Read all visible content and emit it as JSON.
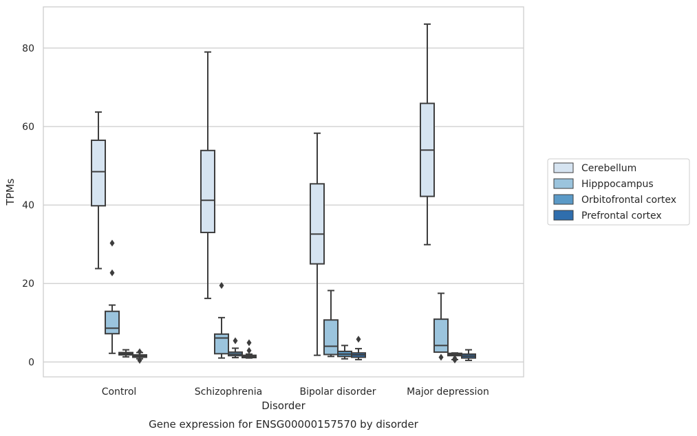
{
  "chart_data": {
    "type": "box",
    "title": "Gene expression for ENSG00000157570 by disorder",
    "xlabel": "Disorder",
    "ylabel": "TPMs",
    "ylim": [
      -3.8,
      90.5
    ],
    "yticks": [
      0,
      20,
      40,
      60,
      80
    ],
    "grid": true,
    "legend_position": "right",
    "categories": [
      "Control",
      "Schizophrenia",
      "Bipolar disorder",
      "Major depression"
    ],
    "series": [
      {
        "name": "Cerebellum",
        "color": "#d6e4f1",
        "boxes": [
          {
            "whisker_low": 23.8,
            "q1": 39.8,
            "median": 48.5,
            "q3": 56.5,
            "whisker_high": 63.7,
            "outliers": []
          },
          {
            "whisker_low": 16.2,
            "q1": 33.0,
            "median": 41.2,
            "q3": 53.9,
            "whisker_high": 79.0,
            "outliers": []
          },
          {
            "whisker_low": 1.7,
            "q1": 25.0,
            "median": 32.6,
            "q3": 45.4,
            "whisker_high": 58.3,
            "outliers": []
          },
          {
            "whisker_low": 29.9,
            "q1": 42.2,
            "median": 54.0,
            "q3": 65.9,
            "whisker_high": 86.1,
            "outliers": []
          }
        ]
      },
      {
        "name": "Hipppocampus",
        "color": "#9bc4dd",
        "boxes": [
          {
            "whisker_low": 2.2,
            "q1": 7.2,
            "median": 8.6,
            "q3": 12.9,
            "whisker_high": 14.5,
            "outliers": [
              22.7,
              30.3
            ]
          },
          {
            "whisker_low": 1.0,
            "q1": 2.1,
            "median": 6.1,
            "q3": 7.1,
            "whisker_high": 11.3,
            "outliers": [
              19.5
            ]
          },
          {
            "whisker_low": 1.4,
            "q1": 1.9,
            "median": 4.0,
            "q3": 10.7,
            "whisker_high": 18.2,
            "outliers": []
          },
          {
            "whisker_low": 2.5,
            "q1": 2.5,
            "median": 4.2,
            "q3": 10.9,
            "whisker_high": 17.5,
            "outliers": [
              1.2
            ]
          }
        ]
      },
      {
        "name": "Orbitofrontal cortex",
        "color": "#5b9ac7",
        "boxes": [
          {
            "whisker_low": 1.3,
            "q1": 1.8,
            "median": 2.1,
            "q3": 2.4,
            "whisker_high": 3.1,
            "outliers": []
          },
          {
            "whisker_low": 1.1,
            "q1": 1.6,
            "median": 2.0,
            "q3": 2.5,
            "whisker_high": 3.5,
            "outliers": [
              5.4
            ]
          },
          {
            "whisker_low": 0.8,
            "q1": 1.4,
            "median": 2.0,
            "q3": 2.7,
            "whisker_high": 4.2,
            "outliers": []
          },
          {
            "whisker_low": 0.6,
            "q1": 1.6,
            "median": 1.9,
            "q3": 2.2,
            "whisker_high": 2.3,
            "outliers": [
              0.5,
              0.9
            ]
          }
        ]
      },
      {
        "name": "Prefrontal cortex",
        "color": "#2f6ead",
        "boxes": [
          {
            "whisker_low": 0.8,
            "q1": 1.2,
            "median": 1.5,
            "q3": 1.8,
            "whisker_high": 2.4,
            "outliers": [
              0.4,
              2.6
            ]
          },
          {
            "whisker_low": 1.0,
            "q1": 1.1,
            "median": 1.4,
            "q3": 1.7,
            "whisker_high": 2.0,
            "outliers": [
              2.9,
              4.9
            ]
          },
          {
            "whisker_low": 0.6,
            "q1": 1.2,
            "median": 1.8,
            "q3": 2.3,
            "whisker_high": 3.4,
            "outliers": [
              5.8
            ]
          },
          {
            "whisker_low": 0.4,
            "q1": 1.0,
            "median": 1.5,
            "q3": 2.0,
            "whisker_high": 3.1,
            "outliers": []
          }
        ]
      }
    ]
  }
}
